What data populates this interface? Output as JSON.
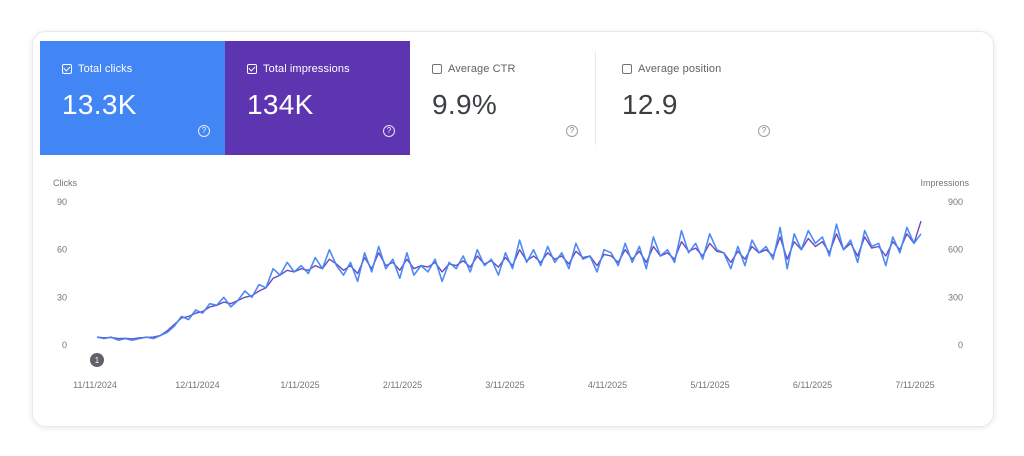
{
  "metrics": [
    {
      "label": "Total clicks",
      "value": "13.3K",
      "selected": true,
      "color": "#4285f4"
    },
    {
      "label": "Total impressions",
      "value": "134K",
      "selected": true,
      "color": "#5e35b1"
    },
    {
      "label": "Average CTR",
      "value": "9.9%",
      "selected": false
    },
    {
      "label": "Average position",
      "value": "12.9",
      "selected": false
    }
  ],
  "help_glyph": "?",
  "chart_data": {
    "type": "line",
    "ylabel_left": "Clicks",
    "ylabel_right": "Impressions",
    "left_ticks": [
      "90",
      "60",
      "30",
      "0"
    ],
    "right_ticks": [
      "900",
      "600",
      "300",
      "0"
    ],
    "ylim_left": [
      0,
      90
    ],
    "ylim_right": [
      0,
      900
    ],
    "x_ticks": [
      "11/11/2024",
      "12/11/2024",
      "1/11/2025",
      "2/11/2025",
      "3/11/2025",
      "4/11/2025",
      "5/11/2025",
      "6/11/2025",
      "7/11/2025"
    ],
    "annotation_marker": "1",
    "grid": false,
    "series": [
      {
        "name": "Clicks",
        "color": "#4285f4",
        "axis": "left",
        "values": [
          5,
          4,
          5,
          3,
          4,
          3,
          4,
          5,
          4,
          6,
          8,
          12,
          18,
          16,
          22,
          20,
          26,
          25,
          30,
          24,
          28,
          34,
          30,
          38,
          36,
          48,
          44,
          52,
          46,
          50,
          45,
          55,
          48,
          60,
          50,
          44,
          52,
          40,
          58,
          46,
          62,
          48,
          54,
          42,
          58,
          44,
          50,
          46,
          54,
          40,
          52,
          48,
          56,
          46,
          60,
          50,
          54,
          44,
          58,
          48,
          66,
          52,
          60,
          50,
          62,
          52,
          58,
          48,
          64,
          54,
          56,
          46,
          60,
          58,
          50,
          64,
          52,
          62,
          48,
          68,
          56,
          60,
          52,
          72,
          58,
          64,
          54,
          70,
          60,
          58,
          48,
          62,
          50,
          66,
          58,
          62,
          54,
          74,
          48,
          70,
          60,
          72,
          64,
          68,
          56,
          76,
          60,
          66,
          52,
          72,
          62,
          64,
          50,
          68,
          58,
          74,
          64,
          70
        ]
      },
      {
        "name": "Impressions",
        "color": "#5e35b1",
        "axis": "right",
        "values": [
          50,
          45,
          48,
          40,
          42,
          38,
          45,
          48,
          50,
          60,
          90,
          130,
          170,
          180,
          200,
          210,
          240,
          250,
          270,
          260,
          280,
          300,
          310,
          340,
          360,
          420,
          440,
          470,
          460,
          480,
          470,
          500,
          480,
          540,
          510,
          470,
          500,
          450,
          550,
          480,
          580,
          500,
          520,
          470,
          540,
          480,
          500,
          490,
          520,
          460,
          510,
          500,
          530,
          490,
          560,
          510,
          530,
          490,
          550,
          500,
          600,
          530,
          560,
          520,
          580,
          540,
          560,
          510,
          590,
          550,
          560,
          500,
          570,
          560,
          520,
          600,
          540,
          590,
          520,
          620,
          560,
          580,
          540,
          650,
          590,
          610,
          560,
          640,
          590,
          580,
          520,
          590,
          540,
          620,
          580,
          600,
          560,
          680,
          540,
          650,
          600,
          670,
          620,
          650,
          580,
          700,
          600,
          640,
          560,
          680,
          610,
          620,
          560,
          650,
          600,
          700,
          640,
          780
        ]
      }
    ]
  }
}
